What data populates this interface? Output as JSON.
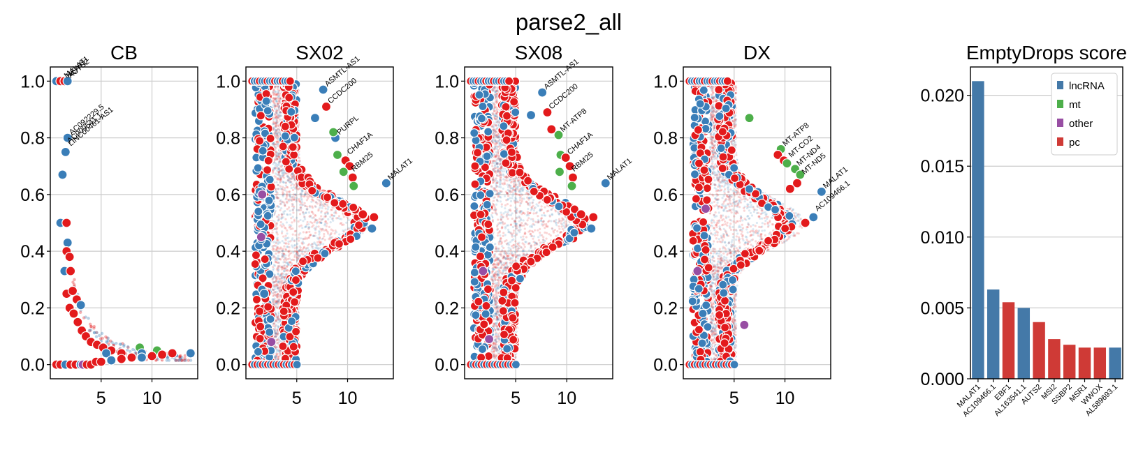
{
  "figure": {
    "suptitle": "parse2_all"
  },
  "colors": {
    "lncRNA": "#3a7eb8",
    "mt": "#4daf4a",
    "other": "#984ea3",
    "pc": "#e31a1c",
    "bar_lncRNA": "#4479a8",
    "bar_pc": "#cf3a36",
    "grid": "#cccccc"
  },
  "chart_data": [
    {
      "type": "scatter",
      "title": "CB",
      "xlim": [
        0,
        14.5
      ],
      "ylim": [
        -0.05,
        1.05
      ],
      "xticks": [
        "5",
        "10"
      ],
      "xtick_values": [
        5,
        10
      ],
      "yticks": [
        "0.0",
        "0.2",
        "0.4",
        "0.6",
        "0.8",
        "1.0"
      ],
      "ytick_values": [
        0,
        0.2,
        0.4,
        0.6,
        0.8,
        1.0
      ],
      "points": [
        [
          0.6,
          1.0,
          "lncRNA"
        ],
        [
          1.0,
          1.0,
          "pc"
        ],
        [
          1.4,
          1.0,
          "pc"
        ],
        [
          1.7,
          1.0,
          "lncRNA"
        ],
        [
          1.7,
          0.8,
          "lncRNA"
        ],
        [
          1.5,
          0.75,
          "lncRNA"
        ],
        [
          1.2,
          0.67,
          "lncRNA"
        ],
        [
          1.0,
          0.5,
          "lncRNA"
        ],
        [
          1.6,
          0.5,
          "pc"
        ],
        [
          1.7,
          0.43,
          "lncRNA"
        ],
        [
          1.6,
          0.4,
          "pc"
        ],
        [
          1.9,
          0.38,
          "pc"
        ],
        [
          1.4,
          0.33,
          "lncRNA"
        ],
        [
          2.0,
          0.33,
          "pc"
        ],
        [
          1.6,
          0.25,
          "pc"
        ],
        [
          2.2,
          0.26,
          "pc"
        ],
        [
          2.6,
          0.23,
          "pc"
        ],
        [
          3.0,
          0.21,
          "lncRNA"
        ],
        [
          1.9,
          0.2,
          "pc"
        ],
        [
          2.3,
          0.18,
          "pc"
        ],
        [
          2.7,
          0.15,
          "pc"
        ],
        [
          3.1,
          0.12,
          "pc"
        ],
        [
          3.5,
          0.1,
          "pc"
        ],
        [
          4.0,
          0.08,
          "pc"
        ],
        [
          4.6,
          0.07,
          "pc"
        ],
        [
          5.2,
          0.06,
          "pc"
        ],
        [
          6.0,
          0.05,
          "pc"
        ],
        [
          8.8,
          0.06,
          "mt"
        ],
        [
          10.5,
          0.05,
          "mt"
        ],
        [
          5.5,
          0.04,
          "lncRNA"
        ],
        [
          7.0,
          0.04,
          "pc"
        ],
        [
          9.0,
          0.04,
          "lncRNA"
        ],
        [
          11.0,
          0.035,
          "pc"
        ],
        [
          12.0,
          0.04,
          "pc"
        ],
        [
          13.8,
          0.04,
          "lncRNA"
        ],
        [
          10.0,
          0.03,
          "pc"
        ],
        [
          0.6,
          0.0,
          "pc"
        ],
        [
          1.0,
          0.0,
          "pc"
        ],
        [
          1.5,
          0.0,
          "lncRNA"
        ],
        [
          2.0,
          0.0,
          "pc"
        ],
        [
          2.5,
          0.0,
          "pc"
        ],
        [
          3.0,
          0.0,
          "lncRNA"
        ],
        [
          3.2,
          0.0,
          "other"
        ],
        [
          3.6,
          0.0,
          "pc"
        ],
        [
          4.0,
          0.0,
          "pc"
        ],
        [
          4.5,
          0.01,
          "pc"
        ],
        [
          5.0,
          0.01,
          "pc"
        ],
        [
          6.0,
          0.015,
          "lncRNA"
        ],
        [
          7.0,
          0.02,
          "pc"
        ],
        [
          8.0,
          0.025,
          "pc"
        ],
        [
          9.0,
          0.025,
          "lncRNA"
        ]
      ],
      "labels": [
        {
          "text": "MALAT1",
          "x": 1.2,
          "y": 1.0
        },
        {
          "text": "NEAT1",
          "x": 1.4,
          "y": 1.0
        },
        {
          "text": "AUTS2",
          "x": 1.6,
          "y": 1.0
        },
        {
          "text": "AC092229.5",
          "x": 1.7,
          "y": 0.8
        },
        {
          "text": "AC009541.1",
          "x": 1.5,
          "y": 0.77
        },
        {
          "text": "LINC00461-AS1",
          "x": 1.6,
          "y": 0.76
        }
      ]
    },
    {
      "type": "scatter",
      "title": "SX02",
      "xlim": [
        0,
        14.5
      ],
      "ylim": [
        -0.05,
        1.05
      ],
      "xticks": [
        "5",
        "10"
      ],
      "xtick_values": [
        5,
        10
      ],
      "yticks": [
        "0.0",
        "0.2",
        "0.4",
        "0.6",
        "0.8",
        "1.0"
      ],
      "ytick_values": [
        0,
        0.2,
        0.4,
        0.6,
        0.8,
        1.0
      ],
      "points": [
        [
          7.6,
          0.97,
          "lncRNA"
        ],
        [
          7.9,
          0.91,
          "pc"
        ],
        [
          8.8,
          0.8,
          "lncRNA"
        ],
        [
          8.6,
          0.82,
          "mt"
        ],
        [
          9.0,
          0.74,
          "mt"
        ],
        [
          9.8,
          0.72,
          "pc"
        ],
        [
          10.2,
          0.7,
          "pc"
        ],
        [
          9.6,
          0.68,
          "mt"
        ],
        [
          10.5,
          0.66,
          "pc"
        ],
        [
          10.6,
          0.63,
          "mt"
        ],
        [
          13.8,
          0.64,
          "lncRNA"
        ],
        [
          12.6,
          0.52,
          "pc"
        ],
        [
          12.4,
          0.48,
          "lncRNA"
        ],
        [
          11.5,
          0.53,
          "pc"
        ],
        [
          1.6,
          0.6,
          "other"
        ],
        [
          1.5,
          0.45,
          "other"
        ],
        [
          1.8,
          0.25,
          "lncRNA"
        ],
        [
          2.5,
          0.08,
          "other"
        ],
        [
          6.8,
          0.87,
          "lncRNA"
        ]
      ],
      "labels": [
        {
          "text": "ASMTL-AS1",
          "x": 7.6,
          "y": 0.97
        },
        {
          "text": "CCDC200",
          "x": 7.9,
          "y": 0.91
        },
        {
          "text": "PURPL",
          "x": 8.8,
          "y": 0.8
        },
        {
          "text": "CHAF1A",
          "x": 9.8,
          "y": 0.73
        },
        {
          "text": "RBM25",
          "x": 10.2,
          "y": 0.67
        },
        {
          "text": "MALAT1",
          "x": 13.8,
          "y": 0.64
        }
      ]
    },
    {
      "type": "scatter",
      "title": "SX08",
      "xlim": [
        0,
        14.5
      ],
      "ylim": [
        -0.05,
        1.05
      ],
      "xticks": [
        "5",
        "10"
      ],
      "xtick_values": [
        5,
        10
      ],
      "yticks": [
        "0.0",
        "0.2",
        "0.4",
        "0.6",
        "0.8",
        "1.0"
      ],
      "ytick_values": [
        0,
        0.2,
        0.4,
        0.6,
        0.8,
        1.0
      ],
      "points": [
        [
          7.6,
          0.96,
          "lncRNA"
        ],
        [
          8.1,
          0.89,
          "pc"
        ],
        [
          9.2,
          0.81,
          "mt"
        ],
        [
          8.5,
          0.83,
          "pc"
        ],
        [
          9.4,
          0.74,
          "mt"
        ],
        [
          9.9,
          0.73,
          "pc"
        ],
        [
          10.3,
          0.7,
          "pc"
        ],
        [
          9.3,
          0.68,
          "mt"
        ],
        [
          10.6,
          0.66,
          "pc"
        ],
        [
          10.5,
          0.63,
          "mt"
        ],
        [
          13.8,
          0.64,
          "lncRNA"
        ],
        [
          12.6,
          0.52,
          "pc"
        ],
        [
          12.4,
          0.48,
          "lncRNA"
        ],
        [
          11.4,
          0.53,
          "pc"
        ],
        [
          1.8,
          0.33,
          "other"
        ],
        [
          2.4,
          0.09,
          "other"
        ],
        [
          6.5,
          0.88,
          "lncRNA"
        ]
      ],
      "labels": [
        {
          "text": "ASMTL-AS1",
          "x": 7.6,
          "y": 0.96
        },
        {
          "text": "CCDC200",
          "x": 8.1,
          "y": 0.89
        },
        {
          "text": "MT-ATP8",
          "x": 9.2,
          "y": 0.81
        },
        {
          "text": "CHAF1A",
          "x": 9.9,
          "y": 0.73
        },
        {
          "text": "RBM25",
          "x": 10.3,
          "y": 0.67
        },
        {
          "text": "MALAT1",
          "x": 13.8,
          "y": 0.64
        }
      ]
    },
    {
      "type": "scatter",
      "title": "DX",
      "xlim": [
        0,
        14.5
      ],
      "ylim": [
        -0.05,
        1.05
      ],
      "xticks": [
        "5",
        "10"
      ],
      "xtick_values": [
        5,
        10
      ],
      "yticks": [
        "0.0",
        "0.2",
        "0.4",
        "0.6",
        "0.8",
        "1.0"
      ],
      "ytick_values": [
        0,
        0.2,
        0.4,
        0.6,
        0.8,
        1.0
      ],
      "points": [
        [
          9.6,
          0.76,
          "mt"
        ],
        [
          9.3,
          0.74,
          "pc"
        ],
        [
          9.9,
          0.72,
          "pc"
        ],
        [
          10.2,
          0.71,
          "mt"
        ],
        [
          11.0,
          0.69,
          "mt"
        ],
        [
          11.5,
          0.67,
          "mt"
        ],
        [
          11.2,
          0.64,
          "pc"
        ],
        [
          10.5,
          0.62,
          "pc"
        ],
        [
          6.5,
          0.87,
          "mt"
        ],
        [
          13.6,
          0.61,
          "lncRNA"
        ],
        [
          12.8,
          0.52,
          "lncRNA"
        ],
        [
          12.0,
          0.5,
          "pc"
        ],
        [
          1.4,
          0.33,
          "other"
        ],
        [
          2.2,
          0.55,
          "other"
        ],
        [
          6.0,
          0.14,
          "other"
        ]
      ],
      "labels": [
        {
          "text": "MT-ATP8",
          "x": 9.6,
          "y": 0.76
        },
        {
          "text": "MT-CO2",
          "x": 10.2,
          "y": 0.72
        },
        {
          "text": "MT-ND4",
          "x": 11.0,
          "y": 0.69
        },
        {
          "text": "MT-ND5",
          "x": 11.5,
          "y": 0.66
        },
        {
          "text": "MALAT1",
          "x": 13.6,
          "y": 0.61
        },
        {
          "text": "AC109466.1",
          "x": 12.8,
          "y": 0.53
        }
      ]
    },
    {
      "type": "bar",
      "title": "EmptyDrops score",
      "categories": [
        "MALAT1",
        "AC109466.1",
        "EBF1",
        "AL163541.1",
        "AUTS2",
        "MSI2",
        "SSBP2",
        "MSR1",
        "WWOX",
        "AL589693.1"
      ],
      "series": [
        {
          "name": "lncRNA",
          "values": [
            0.021,
            0.0063,
            null,
            0.005,
            null,
            null,
            null,
            null,
            null,
            0.0022
          ]
        },
        {
          "name": "mt",
          "values": [
            null,
            null,
            null,
            null,
            null,
            null,
            null,
            null,
            null,
            null
          ]
        },
        {
          "name": "other",
          "values": [
            null,
            null,
            null,
            null,
            null,
            null,
            null,
            null,
            null,
            null
          ]
        },
        {
          "name": "pc",
          "values": [
            null,
            null,
            0.0054,
            null,
            0.004,
            0.0028,
            0.0024,
            0.0022,
            0.0022,
            null
          ]
        }
      ],
      "ylim": [
        0,
        0.022
      ],
      "yticks": [
        "0.000",
        "0.005",
        "0.010",
        "0.015",
        "0.020"
      ],
      "ytick_values": [
        0,
        0.005,
        0.01,
        0.015,
        0.02
      ],
      "legend": {
        "placement": "top-right",
        "entries": [
          "lncRNA",
          "mt",
          "other",
          "pc"
        ]
      }
    }
  ]
}
